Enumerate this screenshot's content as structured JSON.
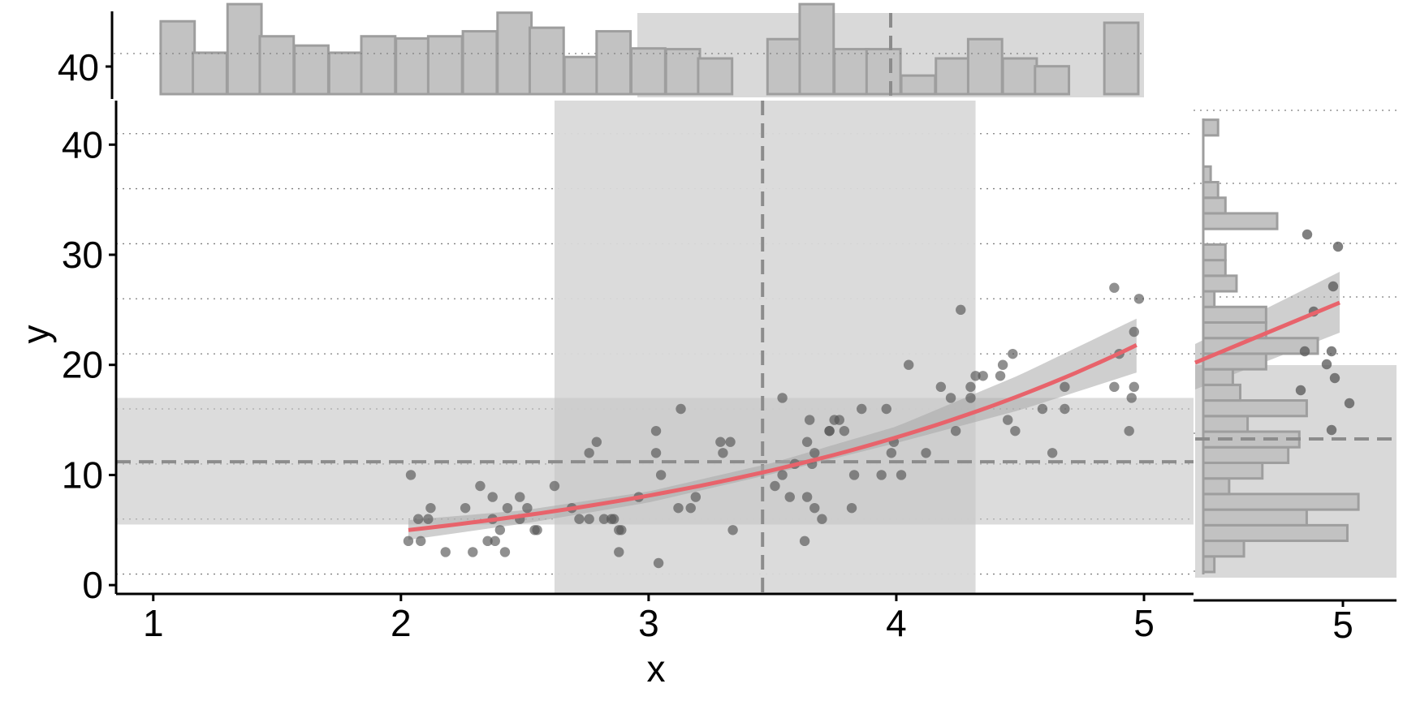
{
  "colors": {
    "points": "#555555",
    "fit_line": "#e8636b",
    "ci_band": "#a8a8a8",
    "highlight_band": "#d9d9d9",
    "histogram_fill": "#c2c2c2",
    "histogram_stroke": "#9e9e9e",
    "reference_line": "#8c8c8c",
    "grid": "#7f7f7f",
    "axis": "#000000"
  },
  "chart_data": {
    "type": "scatter",
    "title": "",
    "xlabel": "x",
    "ylabel": "y",
    "xlim": [
      0.85,
      5.2
    ],
    "ylim": [
      -0.8,
      44
    ],
    "x_ticks": [
      1,
      2,
      3,
      4,
      5
    ],
    "y_ticks": [
      0,
      10,
      20,
      30,
      40
    ],
    "grid": {
      "vertical": false,
      "horizontal_dotted": true,
      "y_values": [
        1,
        6,
        11,
        16,
        21,
        26,
        31,
        36,
        41
      ]
    },
    "mean_x": 3.46,
    "mean_y": 11.2,
    "band_x": [
      2.62,
      4.32
    ],
    "band_y": [
      5.5,
      17
    ],
    "fit": {
      "kind": "exponential",
      "x": [
        2.03,
        2.5,
        3.0,
        3.5,
        4.0,
        4.5,
        4.97
      ],
      "y": [
        5.0,
        6.2,
        8.0,
        10.6,
        13.6,
        17.5,
        21.8
      ],
      "ci_lower": [
        4.1,
        5.6,
        7.5,
        10.1,
        12.9,
        15.9,
        19.3
      ],
      "ci_upper": [
        5.9,
        6.8,
        8.5,
        11.1,
        14.4,
        19.1,
        24.2
      ]
    },
    "points": {
      "x": [
        2.03,
        2.04,
        2.07,
        2.08,
        2.11,
        2.12,
        2.18,
        2.26,
        2.29,
        2.32,
        2.35,
        2.37,
        2.37,
        2.38,
        2.4,
        2.42,
        2.43,
        2.48,
        2.48,
        2.51,
        2.54,
        2.55,
        2.62,
        2.69,
        2.72,
        2.76,
        2.76,
        2.79,
        2.82,
        2.85,
        2.86,
        2.88,
        2.88,
        2.89,
        2.96,
        3.03,
        3.03,
        3.04,
        3.05,
        3.12,
        3.13,
        3.17,
        3.19,
        3.29,
        3.3,
        3.33,
        3.34,
        3.51,
        3.54,
        3.54,
        3.57,
        3.59,
        3.63,
        3.64,
        3.64,
        3.65,
        3.66,
        3.67,
        3.67,
        3.7,
        3.73,
        3.73,
        3.75,
        3.77,
        3.79,
        3.82,
        3.83,
        3.86,
        3.94,
        3.96,
        3.98,
        3.99,
        4.02,
        4.05,
        4.12,
        4.18,
        4.22,
        4.24,
        4.26,
        4.3,
        4.3,
        4.32,
        4.35,
        4.42,
        4.43,
        4.45,
        4.47,
        4.48,
        4.59,
        4.63,
        4.68,
        4.68,
        4.88,
        4.88,
        4.9,
        4.94,
        4.95,
        4.96,
        4.96,
        4.98
      ],
      "y": [
        4,
        10,
        6,
        4,
        6,
        7,
        3,
        7,
        3,
        9,
        4,
        8,
        6,
        4,
        5,
        3,
        7,
        6,
        8,
        7,
        5,
        5,
        9,
        7,
        6,
        12,
        6,
        13,
        6,
        6,
        6,
        5,
        3,
        5,
        8,
        12,
        14,
        2,
        10,
        7,
        16,
        7,
        8,
        13,
        12,
        13,
        5,
        9,
        17,
        10,
        8,
        11,
        4,
        13,
        8,
        15,
        11,
        7,
        12,
        6,
        14,
        14,
        15,
        15,
        14,
        7,
        10,
        16,
        10,
        16,
        12,
        13,
        10,
        20,
        12,
        18,
        17,
        14,
        25,
        17,
        18,
        19,
        19,
        19,
        20,
        15,
        21,
        14,
        16,
        12,
        16,
        18,
        27,
        18,
        21,
        14,
        17,
        18,
        23,
        26
      ]
    },
    "marginal_x": {
      "bins_left": [
        1.03,
        1.16,
        1.3,
        1.43,
        1.57,
        1.71,
        1.84,
        1.98,
        2.11,
        2.25,
        2.39,
        2.52,
        2.66,
        2.79,
        2.93,
        3.07,
        3.2,
        3.34,
        3.48,
        3.61,
        3.75,
        3.88,
        4.02,
        4.16,
        4.29,
        4.43,
        4.56,
        4.7,
        4.84
      ],
      "bin_width": 0.137,
      "counts": [
        10.2,
        5.8,
        12.6,
        8.1,
        6.8,
        5.8,
        8.1,
        7.8,
        8.1,
        8.8,
        11.4,
        9.3,
        5.2,
        8.8,
        6.4,
        6.3,
        5.0,
        0,
        7.7,
        12.6,
        6.3,
        6.3,
        2.6,
        5.0,
        7.7,
        5.0,
        3.9,
        0,
        10.0
      ]
    },
    "marginal_y": {
      "bins_bottom": [
        1,
        2.4,
        3.8,
        5.2,
        6.6,
        8.0,
        9.4,
        10.8,
        12.2,
        13.6,
        15.0,
        16.4,
        17.8,
        19.2,
        20.6,
        22.0,
        23.4,
        24.8,
        26.2,
        27.6,
        29.0,
        30.4,
        31.8,
        33.2,
        34.6,
        36.0,
        37.4,
        38.8,
        40.2
      ],
      "bin_height": 1.4,
      "counts": [
        3,
        11,
        39,
        28,
        42,
        7,
        16,
        23,
        26,
        12,
        28,
        10,
        8,
        17,
        31,
        17,
        17,
        3,
        9,
        6,
        6,
        0,
        20,
        6,
        4,
        2,
        0,
        0,
        4
      ]
    }
  }
}
